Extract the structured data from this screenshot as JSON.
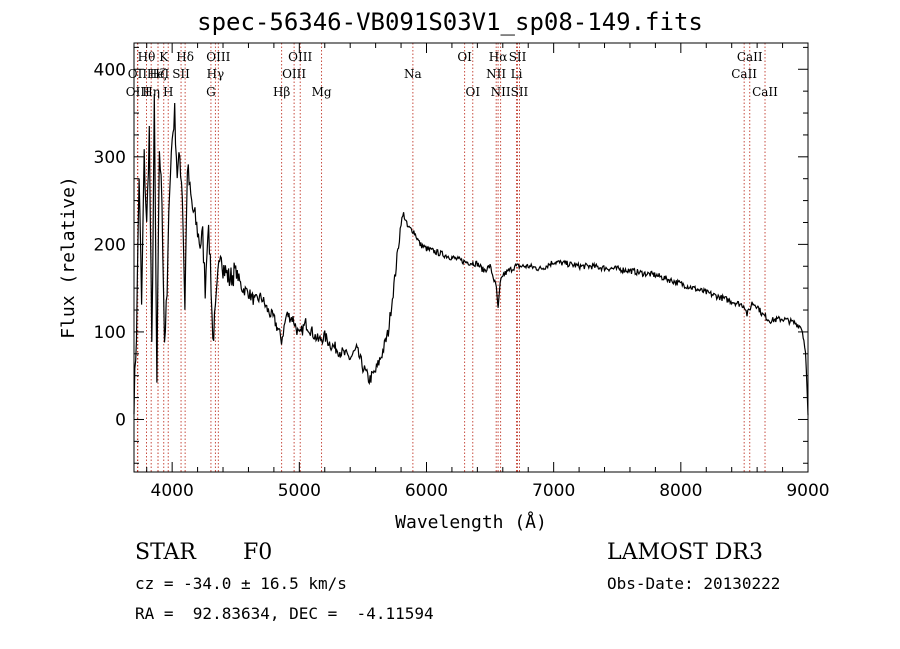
{
  "title": "spec-56346-VB091S03V1_sp08-149.fits",
  "info": {
    "obj_class": "STAR",
    "subclass": "F0",
    "survey": "LAMOST DR3",
    "cz": "cz = -34.0 ± 16.5 km/s",
    "obs_date": "Obs-Date: 20130222",
    "coords": "RA =  92.83634, DEC =  -4.11594"
  },
  "colors": {
    "spectrum": "#000000",
    "lines": "#c0392b",
    "axes": "#000000"
  },
  "chart_data": {
    "type": "line",
    "xlabel": "Wavelength (Å)",
    "ylabel": "Flux (relative)",
    "xlim": [
      3700,
      9000
    ],
    "ylim": [
      -60,
      430
    ],
    "xticks": [
      4000,
      5000,
      6000,
      7000,
      8000,
      9000
    ],
    "yticks": [
      0,
      100,
      200,
      300,
      400
    ],
    "grid": false,
    "legend": "none",
    "spectral_lines": [
      {
        "label": "Hθ",
        "wave": 3798,
        "row": 0
      },
      {
        "label": "OII",
        "wave": 3727,
        "row": 1
      },
      {
        "label": "OIII",
        "wave": 3730,
        "row": 2
      },
      {
        "label": "Hη",
        "wave": 3835,
        "row": 2
      },
      {
        "label": "K",
        "wave": 3934,
        "row": 0
      },
      {
        "label": "Hζ",
        "wave": 3889,
        "row": 1
      },
      {
        "label": "HeI",
        "wave": 3889,
        "row": 1
      },
      {
        "label": "SII",
        "wave": 4070,
        "row": 1
      },
      {
        "label": "H",
        "wave": 3969,
        "row": 2
      },
      {
        "label": "Hδ",
        "wave": 4102,
        "row": 0
      },
      {
        "label": "OIII",
        "wave": 4363,
        "row": 0
      },
      {
        "label": "Hγ",
        "wave": 4340,
        "row": 1
      },
      {
        "label": "G",
        "wave": 4305,
        "row": 2
      },
      {
        "label": "Hβ",
        "wave": 4861,
        "row": 2
      },
      {
        "label": "OIII",
        "wave": 5007,
        "row": 0
      },
      {
        "label": "OIII",
        "wave": 4959,
        "row": 1
      },
      {
        "label": "Mg",
        "wave": 5175,
        "row": 2
      },
      {
        "label": "Na",
        "wave": 5893,
        "row": 1
      },
      {
        "label": "OI",
        "wave": 6300,
        "row": 0
      },
      {
        "label": "OI",
        "wave": 6364,
        "row": 2
      },
      {
        "label": "Hα",
        "wave": 6563,
        "row": 0
      },
      {
        "label": "SII",
        "wave": 6716,
        "row": 0
      },
      {
        "label": "NII",
        "wave": 6548,
        "row": 1
      },
      {
        "label": "Li",
        "wave": 6708,
        "row": 1
      },
      {
        "label": "NII",
        "wave": 6583,
        "row": 2
      },
      {
        "label": "SII",
        "wave": 6731,
        "row": 2
      },
      {
        "label": "CaII",
        "wave": 8542,
        "row": 0
      },
      {
        "label": "CaII",
        "wave": 8498,
        "row": 1
      },
      {
        "label": "CaII",
        "wave": 8662,
        "row": 2
      }
    ],
    "series": [
      {
        "x": [
          3700,
          3720,
          3740,
          3760,
          3780,
          3800,
          3820,
          3840,
          3860,
          3880,
          3900,
          3920,
          3940,
          3960,
          3980,
          4000,
          4020,
          4040,
          4060,
          4080,
          4100,
          4120,
          4140,
          4160,
          4180,
          4200,
          4220,
          4240,
          4260,
          4280,
          4300,
          4320,
          4340,
          4360,
          4380,
          4400,
          4450,
          4500,
          4550,
          4600,
          4650,
          4700,
          4750,
          4800,
          4840,
          4860,
          4880,
          4900,
          4950,
          5000,
          5050,
          5100,
          5150,
          5200,
          5250,
          5300,
          5350,
          5400,
          5450,
          5500,
          5550,
          5600,
          5650,
          5700,
          5720,
          5750,
          5780,
          5800,
          5820,
          5850,
          5900,
          5950,
          6000,
          6100,
          6200,
          6300,
          6400,
          6450,
          6500,
          6550,
          6563,
          6580,
          6600,
          6650,
          6700,
          6800,
          6900,
          7000,
          7100,
          7200,
          7300,
          7400,
          7500,
          7600,
          7700,
          7800,
          7900,
          8000,
          8100,
          8200,
          8300,
          8400,
          8500,
          8520,
          8540,
          8560,
          8600,
          8640,
          8660,
          8700,
          8800,
          8900,
          8950,
          8980,
          9000
        ],
        "y": [
          20,
          100,
          280,
          130,
          300,
          220,
          330,
          80,
          360,
          40,
          310,
          250,
          90,
          140,
          270,
          320,
          350,
          280,
          300,
          260,
          130,
          290,
          260,
          240,
          230,
          215,
          200,
          210,
          150,
          220,
          185,
          90,
          120,
          160,
          200,
          175,
          160,
          170,
          150,
          145,
          135,
          140,
          125,
          115,
          100,
          90,
          105,
          120,
          115,
          95,
          110,
          100,
          90,
          95,
          85,
          80,
          75,
          70,
          80,
          60,
          45,
          55,
          75,
          100,
          125,
          160,
          200,
          225,
          235,
          220,
          215,
          200,
          195,
          190,
          185,
          180,
          178,
          170,
          175,
          150,
          125,
          155,
          165,
          170,
          175,
          175,
          172,
          180,
          178,
          175,
          175,
          173,
          172,
          170,
          167,
          165,
          160,
          155,
          150,
          145,
          140,
          135,
          130,
          120,
          125,
          133,
          130,
          120,
          118,
          113,
          115,
          110,
          105,
          80,
          5
        ]
      }
    ]
  }
}
